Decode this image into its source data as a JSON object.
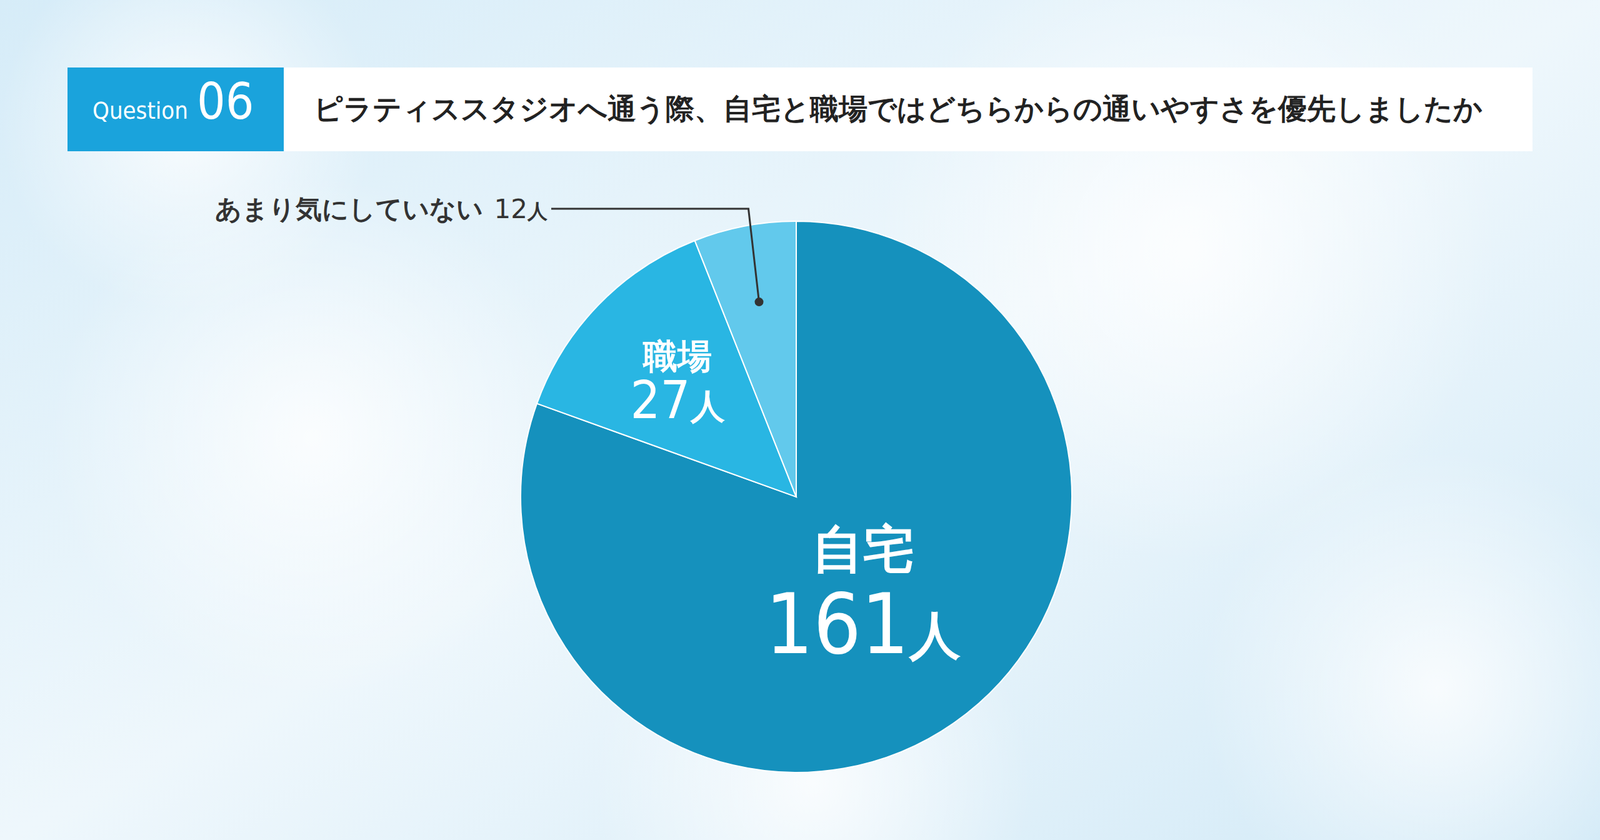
{
  "chart_data": {
    "type": "pie",
    "question_label": "Question",
    "question_number": "06",
    "title": "ピラティススタジオへ通う際、自宅と職場ではどちらからの通いやすさを優先しましたか",
    "categories": [
      "自宅",
      "職場",
      "あまり気にしていない"
    ],
    "values": [
      161,
      27,
      12
    ],
    "colors": [
      "#1591bd",
      "#29b6e3",
      "#62c9ec"
    ],
    "unit": "人",
    "data_labels": true
  }
}
